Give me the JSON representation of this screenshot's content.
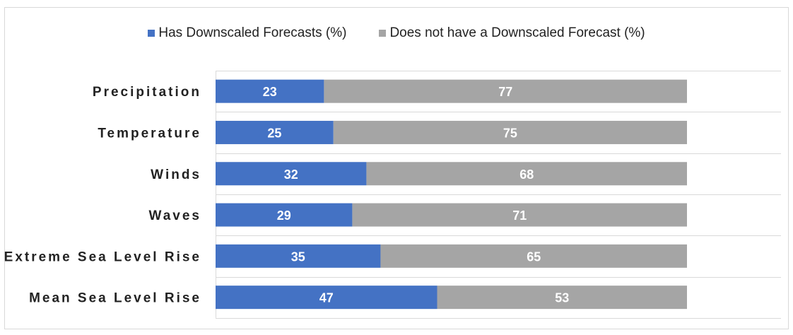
{
  "chart_data": {
    "type": "bar",
    "orientation": "horizontal",
    "stacked": true,
    "categories": [
      "Precipitation",
      "Temperature",
      "Winds",
      "Waves",
      "Extreme Sea Level Rise",
      "Mean Sea Level Rise"
    ],
    "series": [
      {
        "name": "Has Downscaled Forecasts (%)",
        "values": [
          23,
          25,
          32,
          29,
          35,
          47
        ],
        "color": "#4472c4"
      },
      {
        "name": "Does not have a Downscaled Forecast (%)",
        "values": [
          77,
          75,
          68,
          71,
          65,
          53
        ],
        "color": "#a5a5a5"
      }
    ],
    "xlim": [
      0,
      100
    ],
    "grid": true,
    "legend_position": "top-center",
    "data_labels": true
  }
}
